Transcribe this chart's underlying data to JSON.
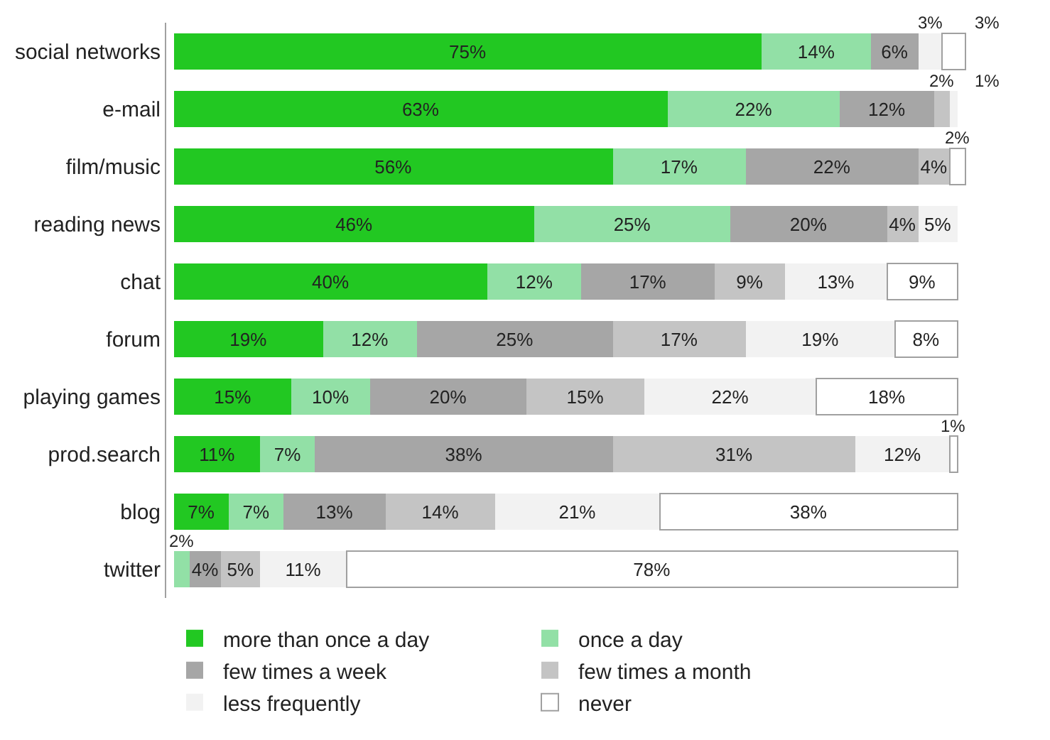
{
  "chart_data": {
    "type": "bar",
    "orientation": "horizontal",
    "stacked": true,
    "legend": "bottom",
    "categories": [
      "social networks",
      "e-mail",
      "film/music",
      "reading news",
      "chat",
      "forum",
      "playing games",
      "prod.search",
      "blog",
      "twitter"
    ],
    "series": [
      {
        "name": "more than once a day",
        "color": "#22c822",
        "values": [
          75,
          63,
          56,
          46,
          40,
          19,
          15,
          11,
          7,
          null
        ],
        "value_labels": [
          "75%",
          "63%",
          "56%",
          "46%",
          "40%",
          "19%",
          "15%",
          "11%",
          "7%",
          null
        ]
      },
      {
        "name": "once a day",
        "color": "#92e0a6",
        "values": [
          14,
          22,
          17,
          25,
          12,
          12,
          10,
          7,
          7,
          2
        ],
        "value_labels": [
          "14%",
          "22%",
          "17%",
          "25%",
          "12%",
          "12%",
          "10%",
          "7%",
          "7%",
          "2%"
        ]
      },
      {
        "name": "few times a week",
        "color": "#a6a6a6",
        "values": [
          6,
          12,
          22,
          20,
          17,
          25,
          20,
          38,
          13,
          4
        ],
        "value_labels": [
          "6%",
          "12%",
          "22%",
          "20%",
          "17%",
          "25%",
          "20%",
          "38%",
          "13%",
          "4%"
        ]
      },
      {
        "name": "few times a month",
        "color": "#c4c4c4",
        "values": [
          null,
          2,
          4,
          4,
          9,
          17,
          15,
          31,
          14,
          5
        ],
        "value_labels": [
          null,
          "2%",
          "4%",
          "4%",
          "9%",
          "17%",
          "15%",
          "31%",
          "14%",
          "5%"
        ]
      },
      {
        "name": "less frequently",
        "color": "#f2f2f2",
        "values": [
          3,
          1,
          null,
          5,
          13,
          19,
          22,
          12,
          21,
          11
        ],
        "value_labels": [
          "3%",
          "1%",
          null,
          "5%",
          "13%",
          "19%",
          "22%",
          "12%",
          "21%",
          "11%"
        ]
      },
      {
        "name": "never",
        "color": "#ffffff",
        "values": [
          3,
          null,
          2,
          null,
          9,
          8,
          18,
          1,
          38,
          78
        ],
        "value_labels": [
          "3%",
          null,
          "2%",
          null,
          "9%",
          "8%",
          "18%",
          "1%",
          "38%",
          "78%"
        ]
      }
    ]
  }
}
